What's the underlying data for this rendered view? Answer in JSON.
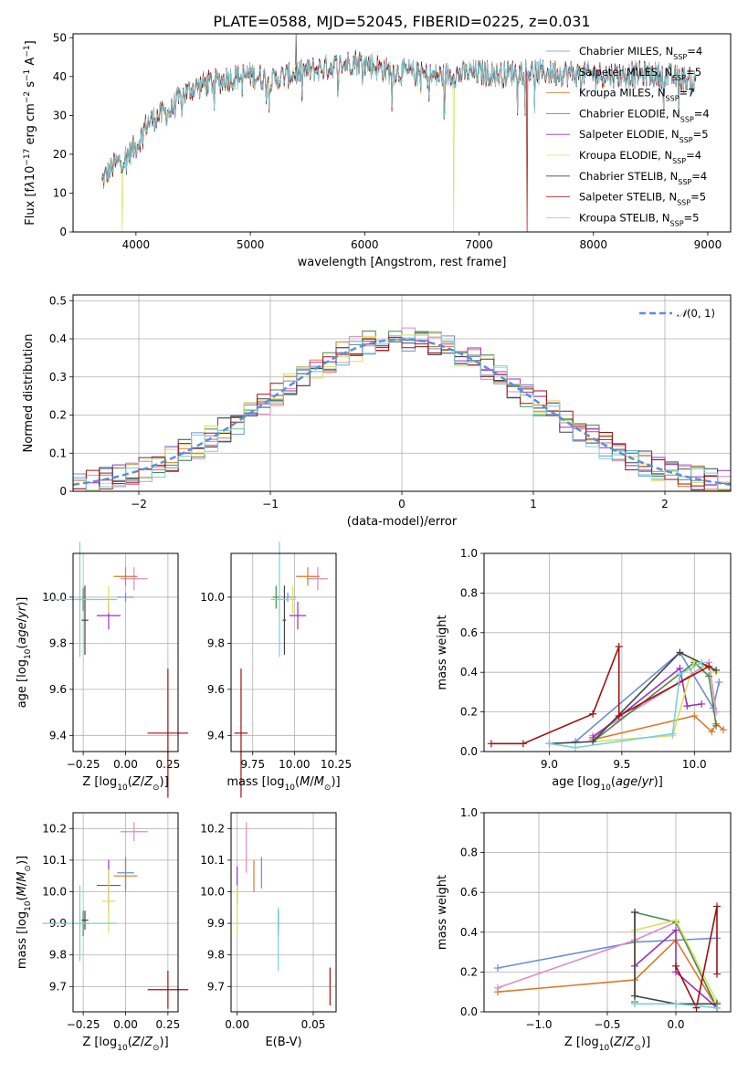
{
  "figure": {
    "title": "PLATE=0588, MJD=52045, FIBERID=0225, z=0.031"
  },
  "models": [
    {
      "name": "Chabrier MILES",
      "nssp": "4",
      "color": "#6b8fd6"
    },
    {
      "name": "Salpeter MILES",
      "nssp": "5",
      "color": "#e08ac0"
    },
    {
      "name": "Kroupa MILES",
      "nssp": "7",
      "color": "#d9792a"
    },
    {
      "name": "Chabrier ELODIE",
      "nssp": "4",
      "color": "#4a8a4a"
    },
    {
      "name": "Salpeter ELODIE",
      "nssp": "5",
      "color": "#9b30c0"
    },
    {
      "name": "Kroupa ELODIE",
      "nssp": "4",
      "color": "#d8e060"
    },
    {
      "name": "Chabrier STELIB",
      "nssp": "4",
      "color": "#444444"
    },
    {
      "name": "Salpeter STELIB",
      "nssp": "5",
      "color": "#a01010"
    },
    {
      "name": "Kroupa STELIB",
      "nssp": "5",
      "color": "#7ad0d8"
    }
  ],
  "chart_data": [
    {
      "id": "spectrum",
      "type": "line",
      "title": "PLATE=0588, MJD=52045, FIBERID=0225, z=0.031",
      "xlabel": "wavelength [Angstrom, rest frame]",
      "ylabel_html": "Flux [f<tspan font-style='italic'>λ</tspan>10<tspan baseline-shift='super' font-size='9'>−17</tspan> erg cm<tspan baseline-shift='super' font-size='9'>−2</tspan> s<tspan baseline-shift='super' font-size='9'>−1</tspan> A<tspan baseline-shift='super' font-size='9'>−1</tspan>]",
      "xlim": [
        3450,
        9200
      ],
      "ylim": [
        0,
        51
      ],
      "xticks": [
        4000,
        5000,
        6000,
        7000,
        8000,
        9000
      ],
      "yticks": [
        0,
        10,
        20,
        30,
        40,
        50
      ],
      "grid": false,
      "legend_position": "top-right",
      "continuum": [
        [
          3700,
          13
        ],
        [
          3800,
          17
        ],
        [
          3900,
          19
        ],
        [
          4000,
          22
        ],
        [
          4100,
          28
        ],
        [
          4200,
          30
        ],
        [
          4300,
          31
        ],
        [
          4400,
          35
        ],
        [
          4500,
          37
        ],
        [
          4600,
          38
        ],
        [
          4800,
          39.5
        ],
        [
          5000,
          40.5
        ],
        [
          5200,
          39
        ],
        [
          5400,
          41
        ],
        [
          5600,
          42
        ],
        [
          5800,
          43
        ],
        [
          5900,
          44
        ],
        [
          6000,
          43.5
        ],
        [
          6200,
          41.5
        ],
        [
          6400,
          41
        ],
        [
          6600,
          40
        ],
        [
          6800,
          40.5
        ],
        [
          7000,
          41
        ],
        [
          7200,
          40.5
        ],
        [
          7400,
          41.5
        ],
        [
          7500,
          41
        ],
        [
          7700,
          41
        ],
        [
          7900,
          40.5
        ],
        [
          8100,
          40.5
        ],
        [
          8300,
          40.5
        ],
        [
          8500,
          40.5
        ],
        [
          8700,
          40
        ],
        [
          8900,
          38.5
        ]
      ],
      "dropouts": [
        {
          "model": 5,
          "wave": 6780,
          "flux": 0
        },
        {
          "model": 7,
          "wave": 7420,
          "flux": 0
        },
        {
          "model": 5,
          "wave": 3880,
          "flux": 0
        }
      ]
    },
    {
      "id": "residuals",
      "type": "histogram",
      "xlabel": "(data-model)/error",
      "ylabel": "Normed distribution",
      "xlim": [
        -2.5,
        2.5
      ],
      "ylim": [
        0,
        0.515
      ],
      "xticks": [
        -2,
        -1,
        0,
        1,
        2
      ],
      "yticks": [
        0.0,
        0.1,
        0.2,
        0.3,
        0.4,
        0.5
      ],
      "grid": true,
      "legend_position": "top-right",
      "reference_label": "N(0,1)",
      "reference_color": "#5b8fd9",
      "bin_width": 0.1
    },
    {
      "id": "z-age",
      "type": "errorbar",
      "xlabel_html": "Z [log<tspan baseline-shift='sub' font-size='9'>10</tspan>(<tspan font-style='italic'>Z</tspan>/<tspan font-style='italic'>Z</tspan><tspan baseline-shift='sub' font-size='9'>⊙</tspan>)]",
      "ylabel_html": "age  [log<tspan baseline-shift='sub' font-size='9'>10</tspan>(<tspan font-style='italic'>age</tspan>/<tspan font-style='italic'>yr</tspan>)]",
      "xlim": [
        -0.31,
        0.31
      ],
      "ylim": [
        9.33,
        10.19
      ],
      "xticks": [
        -0.25,
        0.0,
        0.25
      ],
      "xticklabels": [
        "−0.25",
        "0.00",
        "0.25"
      ],
      "yticks": [
        9.4,
        9.6,
        9.8,
        10.0
      ],
      "yticklabels": [
        "9.4",
        "9.6",
        "9.8",
        "10.0"
      ],
      "grid": true,
      "points": [
        {
          "m": 0,
          "x": 0.0,
          "xe": 0.05,
          "y": 10.0,
          "ye": 0.02
        },
        {
          "m": 1,
          "x": 0.05,
          "xe": 0.08,
          "y": 10.08,
          "ye": 0.05
        },
        {
          "m": 2,
          "x": 0.0,
          "xe": 0.07,
          "y": 10.09,
          "ye": 0.04
        },
        {
          "m": 3,
          "x": -0.25,
          "xe": 0.04,
          "y": 9.99,
          "ye": 0.05
        },
        {
          "m": 4,
          "x": -0.1,
          "xe": 0.07,
          "y": 9.92,
          "ye": 0.06
        },
        {
          "m": 5,
          "x": -0.1,
          "xe": 0.04,
          "y": 9.99,
          "ye": 0.06
        },
        {
          "m": 6,
          "x": -0.24,
          "xe": 0.02,
          "y": 9.9,
          "ye": 0.15
        },
        {
          "m": 7,
          "x": 0.25,
          "xe": 0.12,
          "y": 9.41,
          "ye": 0.28
        },
        {
          "m": 8,
          "x": -0.27,
          "xe": 0.22,
          "y": 9.99,
          "ye": 0.25
        }
      ]
    },
    {
      "id": "mass-age",
      "type": "errorbar",
      "xlabel_html": "mass [log<tspan baseline-shift='sub' font-size='9'>10</tspan>(<tspan font-style='italic'>M</tspan>/<tspan font-style='italic'>M</tspan><tspan baseline-shift='sub' font-size='9'>⊙</tspan>)]",
      "xlim": [
        9.62,
        10.25
      ],
      "ylim": [
        9.33,
        10.19
      ],
      "xticks": [
        9.75,
        10.0,
        10.25
      ],
      "xticklabels": [
        "9.75",
        "10.00",
        "10.25"
      ],
      "yticks": [
        9.4,
        9.6,
        9.8,
        10.0
      ],
      "yticklabels": [
        "9.4",
        "9.6",
        "9.8",
        "10.0"
      ],
      "grid": true,
      "points": [
        {
          "m": 0,
          "x": 9.96,
          "xe": 0.05,
          "y": 10.0,
          "ye": 0.02
        },
        {
          "m": 1,
          "x": 10.14,
          "xe": 0.06,
          "y": 10.08,
          "ye": 0.05
        },
        {
          "m": 2,
          "x": 10.08,
          "xe": 0.07,
          "y": 10.09,
          "ye": 0.04
        },
        {
          "m": 3,
          "x": 9.89,
          "xe": 0.02,
          "y": 10.0,
          "ye": 0.05
        },
        {
          "m": 4,
          "x": 10.02,
          "xe": 0.05,
          "y": 9.92,
          "ye": 0.06
        },
        {
          "m": 5,
          "x": 9.99,
          "xe": 0.02,
          "y": 9.99,
          "ye": 0.06
        },
        {
          "m": 6,
          "x": 9.94,
          "xe": 0.01,
          "y": 9.9,
          "ye": 0.15
        },
        {
          "m": 7,
          "x": 9.68,
          "xe": 0.04,
          "y": 9.41,
          "ye": 0.28
        },
        {
          "m": 8,
          "x": 9.91,
          "xe": 0.05,
          "y": 9.99,
          "ye": 0.25
        }
      ]
    },
    {
      "id": "age-weight",
      "type": "line",
      "xlabel_html": "age  [log<tspan baseline-shift='sub' font-size='9'>10</tspan>(<tspan font-style='italic'>age</tspan>/<tspan font-style='italic'>yr</tspan>)]",
      "ylabel": "mass weight",
      "xlim": [
        8.55,
        10.25
      ],
      "ylim": [
        0,
        1.0
      ],
      "xticks": [
        9.0,
        9.5,
        10.0
      ],
      "xticklabels": [
        "9.0",
        "9.5",
        "10.0"
      ],
      "yticks": [
        0.0,
        0.2,
        0.4,
        0.6,
        0.8,
        1.0
      ],
      "yticklabels": [
        "0.0",
        "0.2",
        "0.4",
        "0.6",
        "0.8",
        "1.0"
      ],
      "grid": true,
      "series": [
        {
          "m": 0,
          "pts": [
            [
              9.18,
              0.05
            ],
            [
              9.9,
              0.5
            ],
            [
              10.13,
              0.22
            ],
            [
              10.17,
              0.35
            ]
          ]
        },
        {
          "m": 1,
          "pts": [
            [
              9.3,
              0.08
            ],
            [
              9.9,
              0.35
            ],
            [
              10.1,
              0.45
            ],
            [
              10.15,
              0.2
            ]
          ]
        },
        {
          "m": 2,
          "pts": [
            [
              9.3,
              0.06
            ],
            [
              10.0,
              0.18
            ],
            [
              10.12,
              0.1
            ],
            [
              10.15,
              0.14
            ],
            [
              10.2,
              0.11
            ]
          ]
        },
        {
          "m": 3,
          "pts": [
            [
              9.3,
              0.05
            ],
            [
              10.0,
              0.45
            ],
            [
              10.1,
              0.38
            ],
            [
              10.15,
              0.13
            ]
          ]
        },
        {
          "m": 4,
          "pts": [
            [
              9.3,
              0.07
            ],
            [
              9.9,
              0.42
            ],
            [
              9.95,
              0.23
            ],
            [
              10.05,
              0.24
            ]
          ]
        },
        {
          "m": 5,
          "pts": [
            [
              9.3,
              0.05
            ],
            [
              9.85,
              0.08
            ],
            [
              10.0,
              0.46
            ],
            [
              10.15,
              0.4
            ]
          ]
        },
        {
          "m": 6,
          "pts": [
            [
              9.0,
              0.04
            ],
            [
              9.3,
              0.05
            ],
            [
              9.9,
              0.5
            ],
            [
              10.15,
              0.41
            ]
          ]
        },
        {
          "m": 7,
          "pts": [
            [
              8.6,
              0.04
            ],
            [
              8.82,
              0.04
            ],
            [
              9.3,
              0.19
            ],
            [
              9.48,
              0.53
            ],
            [
              9.48,
              0.18
            ],
            [
              10.1,
              0.43
            ]
          ]
        },
        {
          "m": 8,
          "pts": [
            [
              9.0,
              0.04
            ],
            [
              9.18,
              0.02
            ],
            [
              9.85,
              0.09
            ],
            [
              9.9,
              0.39
            ],
            [
              10.05,
              0.45
            ]
          ]
        }
      ]
    },
    {
      "id": "z-mass",
      "type": "errorbar",
      "xlabel_html": "Z [log<tspan baseline-shift='sub' font-size='9'>10</tspan>(<tspan font-style='italic'>Z</tspan>/<tspan font-style='italic'>Z</tspan><tspan baseline-shift='sub' font-size='9'>⊙</tspan>)]",
      "ylabel_html": "mass [log<tspan baseline-shift='sub' font-size='9'>10</tspan>(<tspan font-style='italic'>M</tspan>/<tspan font-style='italic'>M</tspan><tspan baseline-shift='sub' font-size='9'>⊙</tspan>)]",
      "xlim": [
        -0.31,
        0.31
      ],
      "ylim": [
        9.62,
        10.25
      ],
      "xticks": [
        -0.25,
        0.0,
        0.25
      ],
      "xticklabels": [
        "−0.25",
        "0.00",
        "0.25"
      ],
      "yticks": [
        9.7,
        9.8,
        9.9,
        10.0,
        10.1,
        10.2
      ],
      "yticklabels": [
        "9.7",
        "9.8",
        "9.9",
        "10.0",
        "10.1",
        "10.2"
      ],
      "grid": true,
      "points": [
        {
          "m": 0,
          "x": 0.0,
          "xe": 0.05,
          "y": 10.06,
          "ye": 0.05
        },
        {
          "m": 1,
          "x": 0.05,
          "xe": 0.08,
          "y": 10.19,
          "ye": 0.03
        },
        {
          "m": 2,
          "x": 0.0,
          "xe": 0.07,
          "y": 10.05,
          "ye": 0.05
        },
        {
          "m": 3,
          "x": -0.25,
          "xe": 0.04,
          "y": 9.9,
          "ye": 0.04
        },
        {
          "m": 4,
          "x": -0.1,
          "xe": 0.07,
          "y": 10.02,
          "ye": 0.08
        },
        {
          "m": 5,
          "x": -0.1,
          "xe": 0.04,
          "y": 9.97,
          "ye": 0.1
        },
        {
          "m": 6,
          "x": -0.24,
          "xe": 0.02,
          "y": 9.91,
          "ye": 0.03
        },
        {
          "m": 7,
          "x": 0.25,
          "xe": 0.12,
          "y": 9.69,
          "ye": 0.06
        },
        {
          "m": 8,
          "x": -0.27,
          "xe": 0.22,
          "y": 9.9,
          "ye": 0.12
        }
      ]
    },
    {
      "id": "ebv-mass",
      "type": "errorbar",
      "xlabel": "E(B-V)",
      "xlim": [
        -0.004,
        0.065
      ],
      "ylim": [
        9.62,
        10.25
      ],
      "xticks": [
        0.0,
        0.05
      ],
      "xticklabels": [
        "0.00",
        "0.05"
      ],
      "yticks": [
        9.7,
        9.8,
        9.9,
        10.0,
        10.1,
        10.2
      ],
      "yticklabels": [
        "9.7",
        "9.8",
        "9.9",
        "10.0",
        "10.1",
        "10.2"
      ],
      "grid": true,
      "points": [
        {
          "m": 0,
          "x": 0.016,
          "xe": 0.0,
          "y": 10.06,
          "ye": 0.05
        },
        {
          "m": 1,
          "x": 0.006,
          "xe": 0.0,
          "y": 10.14,
          "ye": 0.08
        },
        {
          "m": 2,
          "x": 0.011,
          "xe": 0.0,
          "y": 10.05,
          "ye": 0.05
        },
        {
          "m": 3,
          "x": 0.027,
          "xe": 0.0,
          "y": 9.9,
          "ye": 0.04
        },
        {
          "m": 4,
          "x": 0.0,
          "xe": 0.0,
          "y": 10.02,
          "ye": 0.06
        },
        {
          "m": 5,
          "x": 0.0,
          "xe": 0.0,
          "y": 9.94,
          "ye": 0.08
        },
        {
          "m": 6,
          "x": 0.027,
          "xe": 0.0,
          "y": 9.91,
          "ye": 0.03
        },
        {
          "m": 7,
          "x": 0.061,
          "xe": 0.0,
          "y": 9.7,
          "ye": 0.06
        },
        {
          "m": 8,
          "x": 0.027,
          "xe": 0.0,
          "y": 9.85,
          "ye": 0.1
        }
      ]
    },
    {
      "id": "z-weight",
      "type": "line",
      "xlabel_html": "Z [log<tspan baseline-shift='sub' font-size='9'>10</tspan>(<tspan font-style='italic'>Z</tspan>/<tspan font-style='italic'>Z</tspan><tspan baseline-shift='sub' font-size='9'>⊙</tspan>)]",
      "ylabel": "mass weight",
      "xlim": [
        -1.4,
        0.4
      ],
      "ylim": [
        0,
        1.0
      ],
      "xticks": [
        -1.0,
        -0.5,
        0.0
      ],
      "xticklabels": [
        "−1.0",
        "−0.5",
        "0.0"
      ],
      "yticks": [
        0.0,
        0.2,
        0.4,
        0.6,
        0.8,
        1.0
      ],
      "yticklabels": [
        "0.0",
        "0.2",
        "0.4",
        "0.6",
        "0.8",
        "1.0"
      ],
      "grid": true,
      "series": [
        {
          "m": 0,
          "pts": [
            [
              -1.3,
              0.22
            ],
            [
              -0.3,
              0.35
            ],
            [
              0.3,
              0.37
            ]
          ]
        },
        {
          "m": 1,
          "pts": [
            [
              -1.3,
              0.12
            ],
            [
              -0.3,
              0.36
            ],
            [
              0.0,
              0.45
            ],
            [
              0.3,
              0.02
            ]
          ]
        },
        {
          "m": 2,
          "pts": [
            [
              -1.3,
              0.1
            ],
            [
              -0.3,
              0.16
            ],
            [
              0.0,
              0.36
            ],
            [
              0.3,
              0.02
            ]
          ]
        },
        {
          "m": 3,
          "pts": [
            [
              -0.3,
              0.05
            ],
            [
              -0.3,
              0.5
            ],
            [
              0.0,
              0.45
            ],
            [
              0.3,
              0.02
            ]
          ]
        },
        {
          "m": 4,
          "pts": [
            [
              -0.3,
              0.23
            ],
            [
              0.0,
              0.41
            ],
            [
              0.0,
              0.2
            ],
            [
              0.3,
              0.02
            ]
          ]
        },
        {
          "m": 5,
          "pts": [
            [
              -0.3,
              0.04
            ],
            [
              -0.3,
              0.41
            ],
            [
              0.0,
              0.46
            ],
            [
              0.3,
              0.05
            ]
          ]
        },
        {
          "m": 6,
          "pts": [
            [
              -0.3,
              0.5
            ],
            [
              -0.3,
              0.08
            ],
            [
              0.0,
              0.04
            ],
            [
              0.3,
              0.04
            ]
          ]
        },
        {
          "m": 7,
          "pts": [
            [
              0.0,
              0.23
            ],
            [
              0.15,
              0.02
            ],
            [
              0.3,
              0.53
            ],
            [
              0.3,
              0.19
            ]
          ]
        },
        {
          "m": 8,
          "pts": [
            [
              -0.3,
              0.04
            ],
            [
              0.0,
              0.04
            ],
            [
              0.3,
              0.02
            ]
          ]
        }
      ]
    }
  ]
}
